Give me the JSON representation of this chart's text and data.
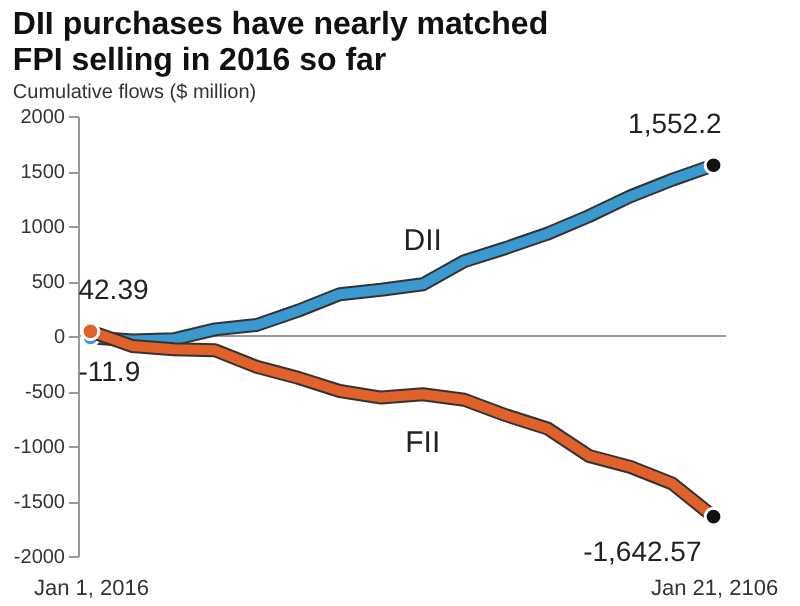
{
  "chart_data": {
    "type": "line",
    "title": "DII purchases have nearly matched\nFPI selling in 2016 so far",
    "subtitle": "Cumulative flows ($ million)",
    "categories": [
      "Jan 1, 2016",
      null,
      null,
      null,
      null,
      null,
      null,
      null,
      null,
      null,
      null,
      null,
      null,
      null,
      null,
      "Jan 21, 2106"
    ],
    "series": [
      {
        "name": "DII",
        "color": "#3a9ad0",
        "values": [
          -11.9,
          -40,
          -30,
          60,
          100,
          230,
          380,
          420,
          470,
          680,
          800,
          930,
          1090,
          1270,
          1420,
          1552.2
        ],
        "value_labels": [
          "-11.9",
          null,
          null,
          null,
          null,
          null,
          null,
          null,
          null,
          null,
          null,
          null,
          null,
          null,
          null,
          "1,552.2"
        ]
      },
      {
        "name": "FII",
        "color": "#e0622a",
        "values": [
          42.39,
          -90,
          -120,
          -130,
          -280,
          -380,
          -500,
          -560,
          -530,
          -580,
          -720,
          -840,
          -1090,
          -1190,
          -1340,
          -1642.57
        ],
        "value_labels": [
          "42.39",
          null,
          null,
          null,
          null,
          null,
          null,
          null,
          null,
          null,
          null,
          null,
          null,
          null,
          null,
          "-1,642.57"
        ]
      }
    ],
    "ylim": [
      -2000,
      2000
    ],
    "yticks": [
      -2000,
      -1500,
      -1000,
      -500,
      0,
      500,
      1000,
      1500,
      2000
    ],
    "ref_lines": [
      {
        "axis": "y",
        "value": 0,
        "color": "#999999"
      }
    ],
    "grid": false,
    "marker": "none",
    "line_style": "solid"
  }
}
